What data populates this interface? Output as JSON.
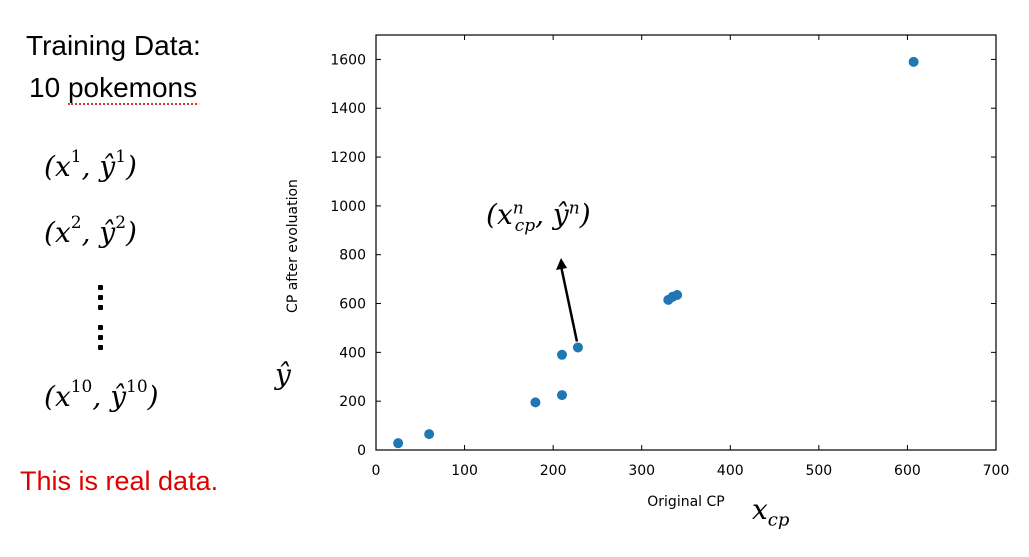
{
  "left_panel": {
    "title_line1": "Training Data:",
    "title_line2_number": "10",
    "title_line2_word": "pokemons",
    "pair1": {
      "x": "x",
      "sup": "1",
      "y": "ŷ"
    },
    "pair2": {
      "x": "x",
      "sup": "2",
      "y": "ŷ"
    },
    "pair10": {
      "x": "x",
      "sup": "10",
      "y": "ŷ"
    },
    "note": "This is real data.",
    "note_color": "#e00000"
  },
  "symbols": {
    "y_hat": "ŷ",
    "x_cp_base": "x",
    "x_cp_sub": "cp",
    "annotation_x": "x",
    "annotation_sup": "n",
    "annotation_sub": "cp",
    "annotation_y": "ŷ",
    "annotation_ysup": "n"
  },
  "chart_data": {
    "type": "scatter",
    "xlabel": "Original CP",
    "ylabel": "CP after evoluation",
    "xlim": [
      0,
      700
    ],
    "ylim": [
      0,
      1700
    ],
    "xticks": [
      0,
      100,
      200,
      300,
      400,
      500,
      600,
      700
    ],
    "yticks": [
      0,
      200,
      400,
      600,
      800,
      1000,
      1200,
      1400,
      1600
    ],
    "point_color": "#1f77b4",
    "grid": false,
    "points": [
      [
        25,
        28
      ],
      [
        60,
        65
      ],
      [
        180,
        195
      ],
      [
        210,
        225
      ],
      [
        210,
        390
      ],
      [
        228,
        420
      ],
      [
        330,
        615
      ],
      [
        335,
        628
      ],
      [
        340,
        635
      ],
      [
        607,
        1590
      ]
    ],
    "annotated_point": [
      228,
      420
    ]
  }
}
